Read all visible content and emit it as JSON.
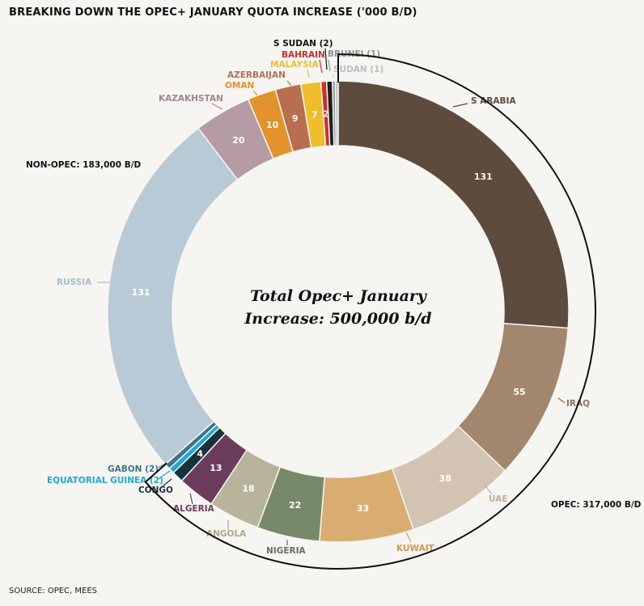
{
  "chart_data": {
    "type": "pie",
    "title": "BREAKING DOWN THE OPEC+ JANUARY QUOTA INCREASE ('000 B/D)",
    "center_text": [
      "Total Opec+ January",
      "Increase: 500,000 b/d"
    ],
    "source": "SOURCE: OPEC, MEES",
    "groups": [
      {
        "label": "OPEC: 317,000 B/D"
      },
      {
        "label": "NON-OPEC: 183,000 B/D"
      }
    ],
    "slices": [
      {
        "label": "S ARABIA",
        "value": 131,
        "color": "#5d4b3d",
        "label_color": "#5d4b3d",
        "value_label": "131"
      },
      {
        "label": "IRAQ",
        "value": 55,
        "color": "#a2866e",
        "label_color": "#8f7259",
        "value_label": "55"
      },
      {
        "label": "UAE",
        "value": 38,
        "color": "#d3c3b2",
        "label_color": "#c4ae98",
        "value_label": "38"
      },
      {
        "label": "KUWAIT",
        "value": 33,
        "color": "#d9ad72",
        "label_color": "#cf9a52",
        "value_label": "33"
      },
      {
        "label": "NIGERIA",
        "value": 22,
        "color": "#768a69",
        "label_color": "#5f7456",
        "value_label": "22"
      },
      {
        "label": "ANGOLA",
        "value": 18,
        "color": "#b7b49b",
        "label_color": "#aaa68a",
        "value_label": "18"
      },
      {
        "label": "ALGERIA",
        "value": 13,
        "color": "#6b3c5c",
        "label_color": "#6b3c5c",
        "value_label": "13"
      },
      {
        "label": "CONGO",
        "value": 4,
        "color": "#16333b",
        "label_color": "#16333b",
        "value_label": "4"
      },
      {
        "label": "EQUATORIAL GUINEA (2)",
        "value": 2,
        "color": "#1ea8dc",
        "label_color": "#1ea8dc",
        "value_label": ""
      },
      {
        "label": "GABON (2)",
        "value": 2,
        "color": "#3b7687",
        "label_color": "#3b7687",
        "value_label": ""
      },
      {
        "label": "RUSSIA",
        "value": 131,
        "color": "#b8cad5",
        "label_color": "#a9bccb",
        "value_label": "131"
      },
      {
        "label": "KAZAKHSTAN",
        "value": 20,
        "color": "#b49ba6",
        "label_color": "#a38593",
        "value_label": "20"
      },
      {
        "label": "OMAN",
        "value": 10,
        "color": "#e4922c",
        "label_color": "#e4922c",
        "value_label": "10"
      },
      {
        "label": "AZERBAIJAN",
        "value": 9,
        "color": "#b86e4f",
        "label_color": "#b86e4f",
        "value_label": "9"
      },
      {
        "label": "MALAYSIA",
        "value": 7,
        "color": "#f0bd2d",
        "label_color": "#f0bd2d",
        "value_label": "7"
      },
      {
        "label": "BAHRAIN",
        "value": 2,
        "color": "#cf2d2b",
        "label_color": "#cf2d2b",
        "value_label": "2"
      },
      {
        "label": "S SUDAN (2)",
        "value": 2,
        "color": "#1f1f1f",
        "label_color": "#111111",
        "value_label": ""
      },
      {
        "label": "BRUNEI (1)",
        "value": 1,
        "color": "#8b9196",
        "label_color": "#8b9196",
        "value_label": ""
      },
      {
        "label": "SUDAN (1)",
        "value": 1,
        "color": "#c2c2c2",
        "label_color": "#bdbdbd",
        "value_label": ""
      }
    ]
  }
}
